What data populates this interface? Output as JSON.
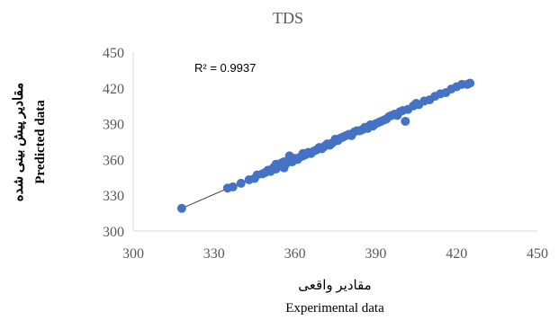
{
  "chart_data": {
    "type": "scatter",
    "title": "TDS",
    "xlabel_fa": "مقادیر واقعی",
    "xlabel_en": "Experimental data",
    "ylabel_fa": "مقادیر پیش بینی شده",
    "ylabel_en": "Predicted data",
    "annotation": "R² = 0.9937",
    "xlim": [
      300,
      450
    ],
    "ylim": [
      300,
      450
    ],
    "x_ticks": [
      "300",
      "330",
      "360",
      "390",
      "420",
      "450"
    ],
    "y_ticks": [
      "300",
      "330",
      "360",
      "390",
      "420",
      "450"
    ],
    "grid": false,
    "legend": "none",
    "trendline": {
      "x": [
        318,
        425
      ],
      "y": [
        319,
        424
      ]
    },
    "colors": {
      "marker": "#4472C4",
      "trendline": "#404040",
      "axis": "#d9d9d9"
    },
    "series": [
      {
        "points": [
          [
            318,
            319
          ],
          [
            335,
            336
          ],
          [
            337,
            337
          ],
          [
            340,
            340
          ],
          [
            343,
            343
          ],
          [
            345,
            344
          ],
          [
            346,
            347
          ],
          [
            348,
            348
          ],
          [
            349,
            349
          ],
          [
            350,
            351
          ],
          [
            351,
            350
          ],
          [
            352,
            353
          ],
          [
            353,
            352
          ],
          [
            353,
            356
          ],
          [
            354,
            355
          ],
          [
            355,
            357
          ],
          [
            356,
            353
          ],
          [
            356,
            358
          ],
          [
            357,
            357
          ],
          [
            358,
            363
          ],
          [
            358,
            359
          ],
          [
            359,
            358
          ],
          [
            360,
            361
          ],
          [
            361,
            360
          ],
          [
            362,
            362
          ],
          [
            363,
            363
          ],
          [
            363,
            365
          ],
          [
            364,
            364
          ],
          [
            365,
            366
          ],
          [
            366,
            365
          ],
          [
            367,
            367
          ],
          [
            368,
            368
          ],
          [
            369,
            370
          ],
          [
            370,
            369
          ],
          [
            371,
            371
          ],
          [
            372,
            373
          ],
          [
            373,
            372
          ],
          [
            374,
            374
          ],
          [
            375,
            377
          ],
          [
            376,
            376
          ],
          [
            377,
            378
          ],
          [
            378,
            379
          ],
          [
            379,
            380
          ],
          [
            380,
            381
          ],
          [
            381,
            380
          ],
          [
            382,
            383
          ],
          [
            383,
            384
          ],
          [
            384,
            384
          ],
          [
            385,
            385
          ],
          [
            386,
            387
          ],
          [
            387,
            386
          ],
          [
            388,
            389
          ],
          [
            389,
            388
          ],
          [
            390,
            390
          ],
          [
            391,
            391
          ],
          [
            392,
            392
          ],
          [
            393,
            393
          ],
          [
            394,
            394
          ],
          [
            395,
            396
          ],
          [
            396,
            397
          ],
          [
            397,
            398
          ],
          [
            398,
            397
          ],
          [
            399,
            400
          ],
          [
            400,
            401
          ],
          [
            401,
            392
          ],
          [
            402,
            402
          ],
          [
            404,
            405
          ],
          [
            405,
            407
          ],
          [
            406,
            406
          ],
          [
            408,
            409
          ],
          [
            410,
            410
          ],
          [
            412,
            413
          ],
          [
            414,
            415
          ],
          [
            416,
            416
          ],
          [
            418,
            419
          ],
          [
            420,
            421
          ],
          [
            422,
            423
          ],
          [
            424,
            423
          ],
          [
            425,
            424
          ]
        ]
      }
    ]
  }
}
